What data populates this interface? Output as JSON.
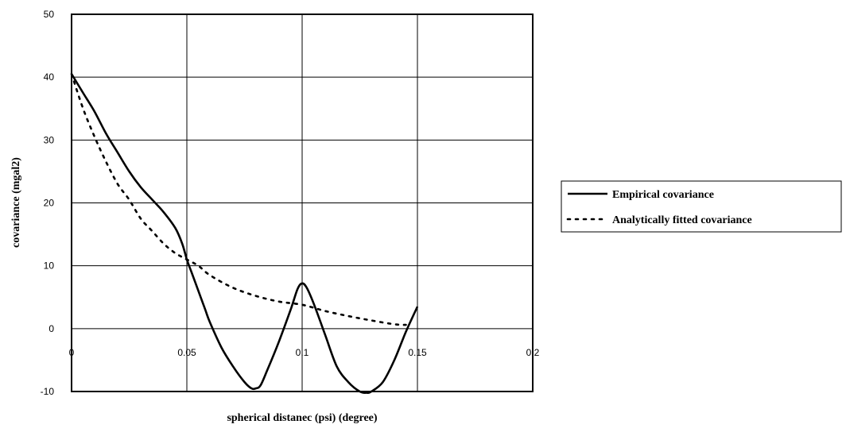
{
  "chart_data": {
    "type": "line",
    "title": "",
    "xlabel": "spherical distanec (psi) (degree)",
    "ylabel": "covariance (mgal2)",
    "xlim": [
      0,
      0.2
    ],
    "ylim": [
      -10,
      50
    ],
    "x_ticks": [
      0,
      0.05,
      0.1,
      0.15,
      0.2
    ],
    "x_tick_labels": [
      "0",
      "0.05",
      "0.1",
      "0.15",
      "0.2"
    ],
    "y_ticks": [
      -10,
      0,
      10,
      20,
      30,
      40,
      50
    ],
    "y_tick_labels": [
      "-10",
      "0",
      "10",
      "20",
      "30",
      "40",
      "50"
    ],
    "grid": true,
    "legend_position": "right",
    "series": [
      {
        "name": "Empirical covariance",
        "style": "solid",
        "color": "#000000",
        "x": [
          0,
          0.005,
          0.01,
          0.015,
          0.02,
          0.025,
          0.03,
          0.035,
          0.04,
          0.045,
          0.048,
          0.05,
          0.052,
          0.055,
          0.058,
          0.06,
          0.065,
          0.07,
          0.075,
          0.078,
          0.08,
          0.082,
          0.085,
          0.09,
          0.095,
          0.098,
          0.1,
          0.102,
          0.105,
          0.11,
          0.115,
          0.12,
          0.125,
          0.128,
          0.13,
          0.135,
          0.14,
          0.145,
          0.15
        ],
        "y": [
          40.5,
          37.5,
          34.5,
          31,
          28,
          25,
          22.5,
          20.5,
          18.5,
          16,
          13.5,
          11,
          9,
          6,
          3,
          1,
          -3,
          -6,
          -8.5,
          -9.5,
          -9.5,
          -9,
          -6.5,
          -2,
          3,
          6.3,
          7.2,
          6.5,
          4,
          -1,
          -6,
          -8.5,
          -10,
          -10.2,
          -10,
          -8.5,
          -5,
          -0.5,
          3.5
        ]
      },
      {
        "name": "Analytically fitted covariance",
        "style": "dotted",
        "color": "#000000",
        "x": [
          0,
          0.005,
          0.01,
          0.015,
          0.02,
          0.025,
          0.03,
          0.035,
          0.04,
          0.045,
          0.05,
          0.055,
          0.06,
          0.07,
          0.08,
          0.09,
          0.1,
          0.11,
          0.12,
          0.13,
          0.14,
          0.145
        ],
        "y": [
          40.5,
          35,
          30.5,
          26.5,
          23,
          20.5,
          17.5,
          15.5,
          13.5,
          12,
          11,
          10,
          8.5,
          6.5,
          5.2,
          4.3,
          3.8,
          2.8,
          2.0,
          1.3,
          0.7,
          0.6
        ]
      }
    ]
  }
}
